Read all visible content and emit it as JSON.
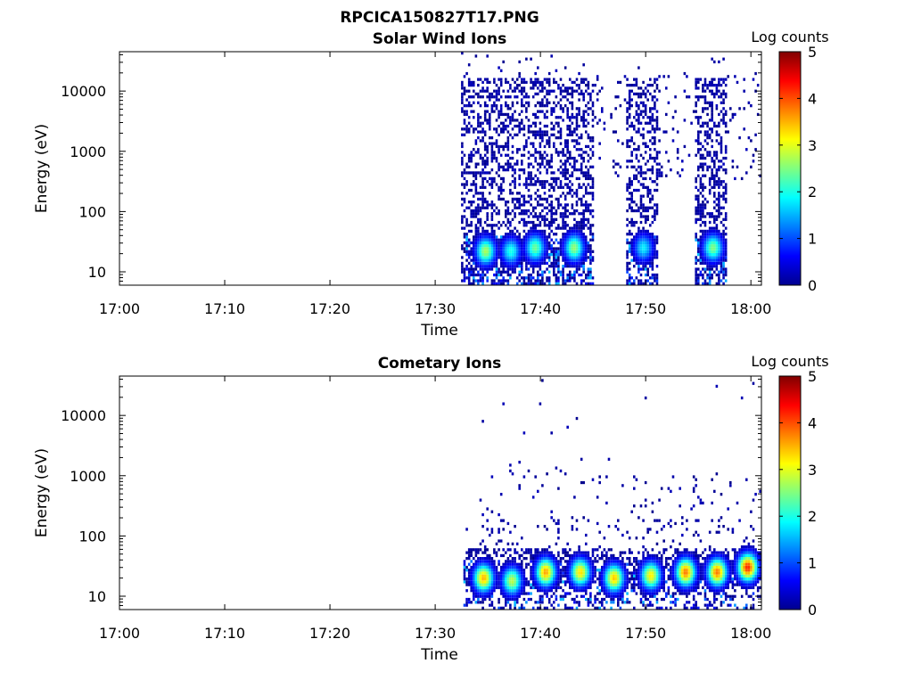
{
  "figure_title": "RPCICA150827T17.PNG",
  "chart_data": [
    {
      "type": "heatmap",
      "title": "Solar Wind Ions",
      "xlabel": "Time",
      "ylabel": "Energy (eV)",
      "x_ticks": [
        "17:00",
        "17:10",
        "17:20",
        "17:30",
        "17:40",
        "17:50",
        "18:00"
      ],
      "x_range_minutes": [
        0,
        61
      ],
      "y_scale": "log",
      "y_ticks": [
        "10",
        "100",
        "1000",
        "10000"
      ],
      "y_range_ev": [
        6,
        45000
      ],
      "colorbar": {
        "label": "Log counts",
        "range": [
          0,
          5
        ],
        "ticks": [
          "0",
          "1",
          "2",
          "3",
          "4",
          "5"
        ],
        "colormap": "jet"
      },
      "active_intervals_minutes": [
        [
          32.4,
          45.2
        ],
        [
          48.2,
          51.3
        ],
        [
          54.7,
          57.8
        ]
      ],
      "sparse_intervals_minutes": [
        [
          45.2,
          48.2
        ],
        [
          51.3,
          54.7
        ],
        [
          57.8,
          61
        ]
      ],
      "low_energy_hotspots": [
        {
          "t": 34.8,
          "energy_ev": 22,
          "log_counts": 2.7
        },
        {
          "t": 37.2,
          "energy_ev": 22,
          "log_counts": 2.0
        },
        {
          "t": 39.5,
          "energy_ev": 25,
          "log_counts": 2.4
        },
        {
          "t": 43.2,
          "energy_ev": 25,
          "log_counts": 2.6
        },
        {
          "t": 49.8,
          "energy_ev": 25,
          "log_counts": 1.8
        },
        {
          "t": 56.4,
          "energy_ev": 25,
          "log_counts": 2.5
        }
      ]
    },
    {
      "type": "heatmap",
      "title": "Cometary Ions",
      "xlabel": "Time",
      "ylabel": "Energy (eV)",
      "x_ticks": [
        "17:00",
        "17:10",
        "17:20",
        "17:30",
        "17:40",
        "17:50",
        "18:00"
      ],
      "x_range_minutes": [
        0,
        61
      ],
      "y_scale": "log",
      "y_ticks": [
        "10",
        "100",
        "1000",
        "10000"
      ],
      "y_range_ev": [
        6,
        45000
      ],
      "colorbar": {
        "label": "Log counts",
        "range": [
          0,
          5
        ],
        "ticks": [
          "0",
          "1",
          "2",
          "3",
          "4",
          "5"
        ],
        "colormap": "jet"
      },
      "active_intervals_minutes": [
        [
          32.6,
          61
        ]
      ],
      "low_energy_hotspots": [
        {
          "t": 34.6,
          "energy_ev": 20,
          "log_counts": 3.5
        },
        {
          "t": 37.3,
          "energy_ev": 18,
          "log_counts": 2.8
        },
        {
          "t": 40.5,
          "energy_ev": 25,
          "log_counts": 3.6
        },
        {
          "t": 43.8,
          "energy_ev": 25,
          "log_counts": 3.3
        },
        {
          "t": 47.0,
          "energy_ev": 20,
          "log_counts": 3.4
        },
        {
          "t": 50.5,
          "energy_ev": 22,
          "log_counts": 3.2
        },
        {
          "t": 53.8,
          "energy_ev": 25,
          "log_counts": 3.8
        },
        {
          "t": 56.8,
          "energy_ev": 25,
          "log_counts": 3.8
        },
        {
          "t": 59.7,
          "energy_ev": 30,
          "log_counts": 4.2
        }
      ]
    }
  ]
}
